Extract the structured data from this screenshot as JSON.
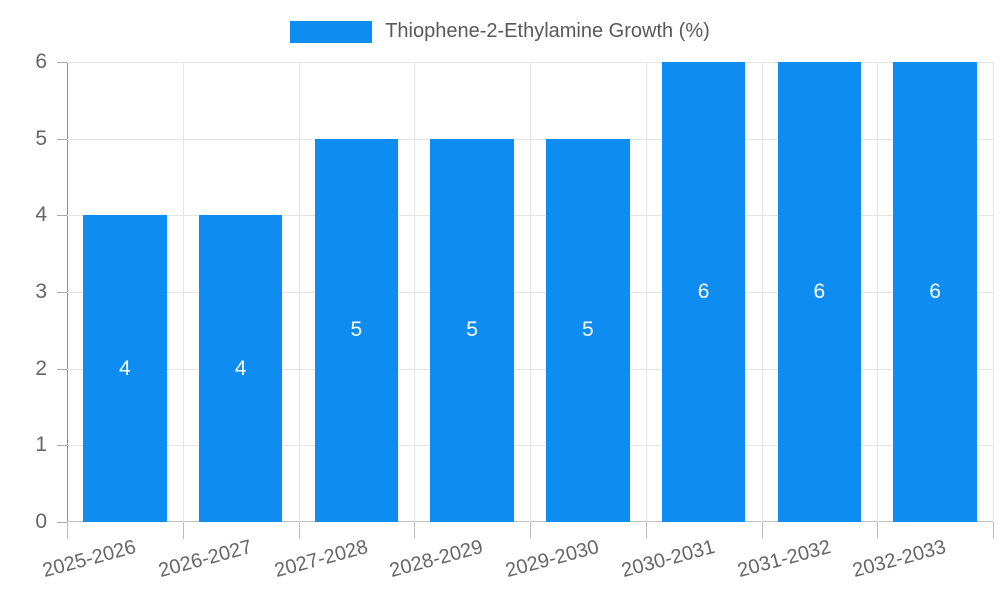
{
  "legend": {
    "label": "Thiophene-2-Ethylamine Growth (%)"
  },
  "chart_data": {
    "type": "bar",
    "title": "",
    "categories": [
      "2025-2026",
      "2026-2027",
      "2027-2028",
      "2028-2029",
      "2029-2030",
      "2030-2031",
      "2031-2032",
      "2032-2033"
    ],
    "series": [
      {
        "name": "Thiophene-2-Ethylamine Growth (%)",
        "values": [
          4,
          4,
          5,
          5,
          5,
          6,
          6,
          6
        ]
      }
    ],
    "xlabel": "",
    "ylabel": "",
    "ylim": [
      0,
      6
    ],
    "yticks": [
      0,
      1,
      2,
      3,
      4,
      5,
      6
    ],
    "grid": true,
    "legend_position": "top-center",
    "x_label_rotation_deg": -15,
    "bar_slot_fraction": 0.72,
    "colors": {
      "bar": "#0d8df2",
      "bar_label": "#ffffff",
      "grid": "#e4e4e4",
      "y_axis": "#909090",
      "x_axis": "#c2c2c2",
      "tick_label": "#666666",
      "legend_text": "#595959",
      "background": "#ffffff"
    }
  }
}
